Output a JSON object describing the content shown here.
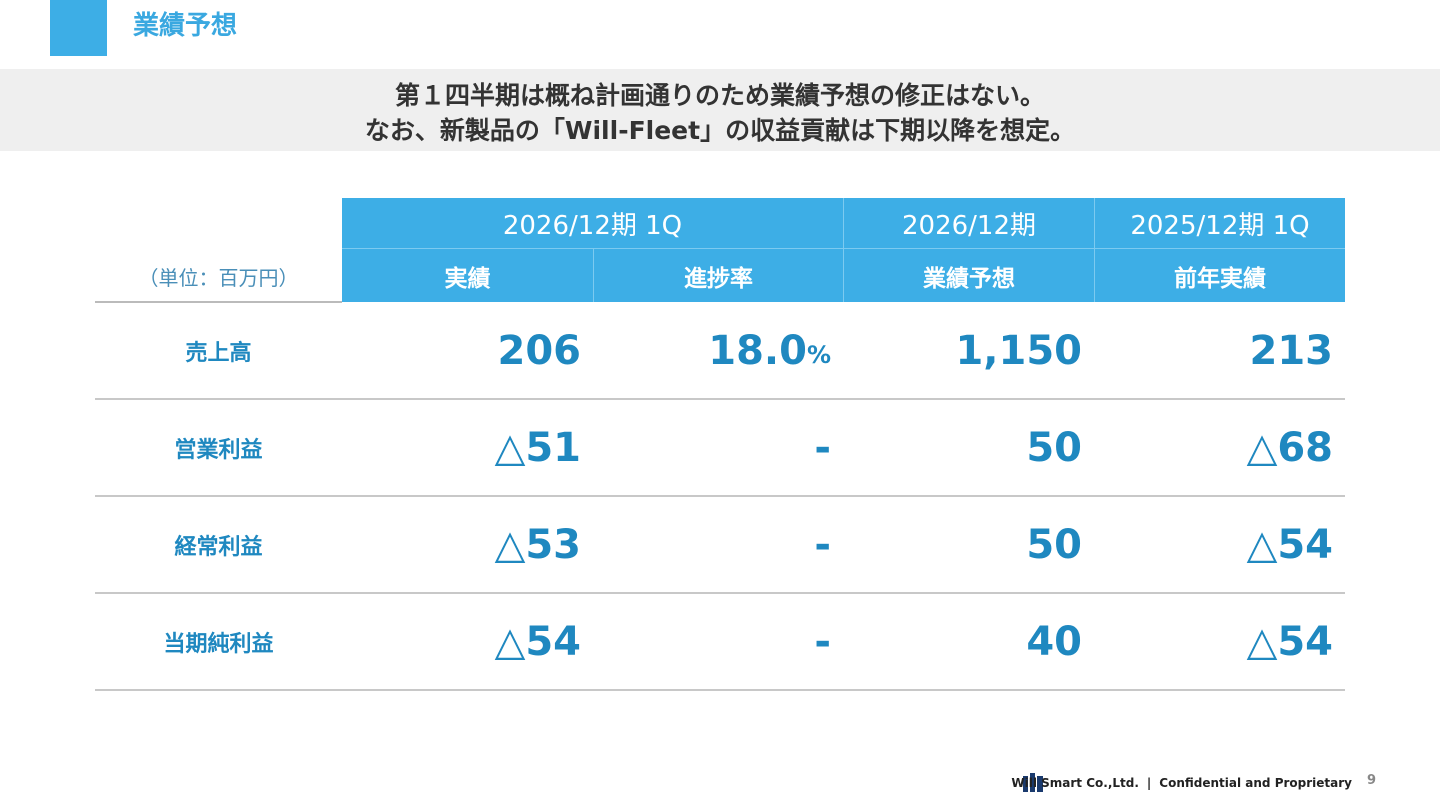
{
  "header": {
    "title": "業績予想"
  },
  "summary": {
    "lines": [
      "第１四半期は概ね計画通りのため業績予想の修正はない。",
      "なお、新製品の「Will-Fleet」の収益貢献は下期以降を想定。"
    ]
  },
  "table": {
    "unit_note": "（単位：百万円）",
    "group_headers": [
      "2026/12期 1Q",
      "2026/12期",
      "2025/12期 1Q"
    ],
    "column_headers": [
      "実績",
      "進捗率",
      "業績予想",
      "前年実績"
    ],
    "rows": [
      {
        "label": "売上高",
        "cells": [
          "206",
          {
            "text": "18.0",
            "unit": "%"
          },
          "1,150",
          "213"
        ]
      },
      {
        "label": "営業利益",
        "cells": [
          "△51",
          "-",
          "50",
          "△68"
        ]
      },
      {
        "label": "経常利益",
        "cells": [
          "△53",
          "-",
          "50",
          "△54"
        ]
      },
      {
        "label": "当期純利益",
        "cells": [
          "△54",
          "-",
          "40",
          "△54"
        ]
      }
    ]
  },
  "footer": {
    "company": "Will Smart Co.,Ltd.",
    "separator": "|",
    "note": "Confidential and Proprietary",
    "page": "9"
  }
}
